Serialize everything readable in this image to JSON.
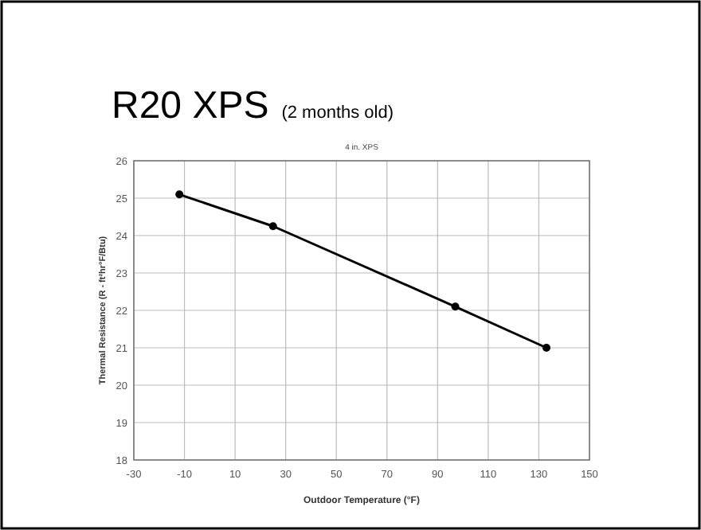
{
  "chart_data": {
    "type": "line",
    "title": "R20 XPS",
    "subtitle": "(2 months old)",
    "annotations": [
      "4 in. XPS"
    ],
    "xlabel": "Outdoor Temperature (°F)",
    "ylabel": "Thermal Resistance (R - ft²hr°F/Btu)",
    "x": [
      -12,
      25,
      97,
      133
    ],
    "series": [
      {
        "color": "#000000",
        "values": [
          25.1,
          24.25,
          22.1,
          21.0
        ]
      }
    ],
    "xlim": [
      -30,
      150
    ],
    "xticks": [
      -30,
      -10,
      10,
      30,
      50,
      70,
      90,
      110,
      130,
      150
    ],
    "ylim": [
      18,
      26
    ],
    "yticks": [
      18,
      19,
      20,
      21,
      22,
      23,
      24,
      25,
      26
    ],
    "grid": true,
    "marker": "circle",
    "line_style": "solid"
  }
}
